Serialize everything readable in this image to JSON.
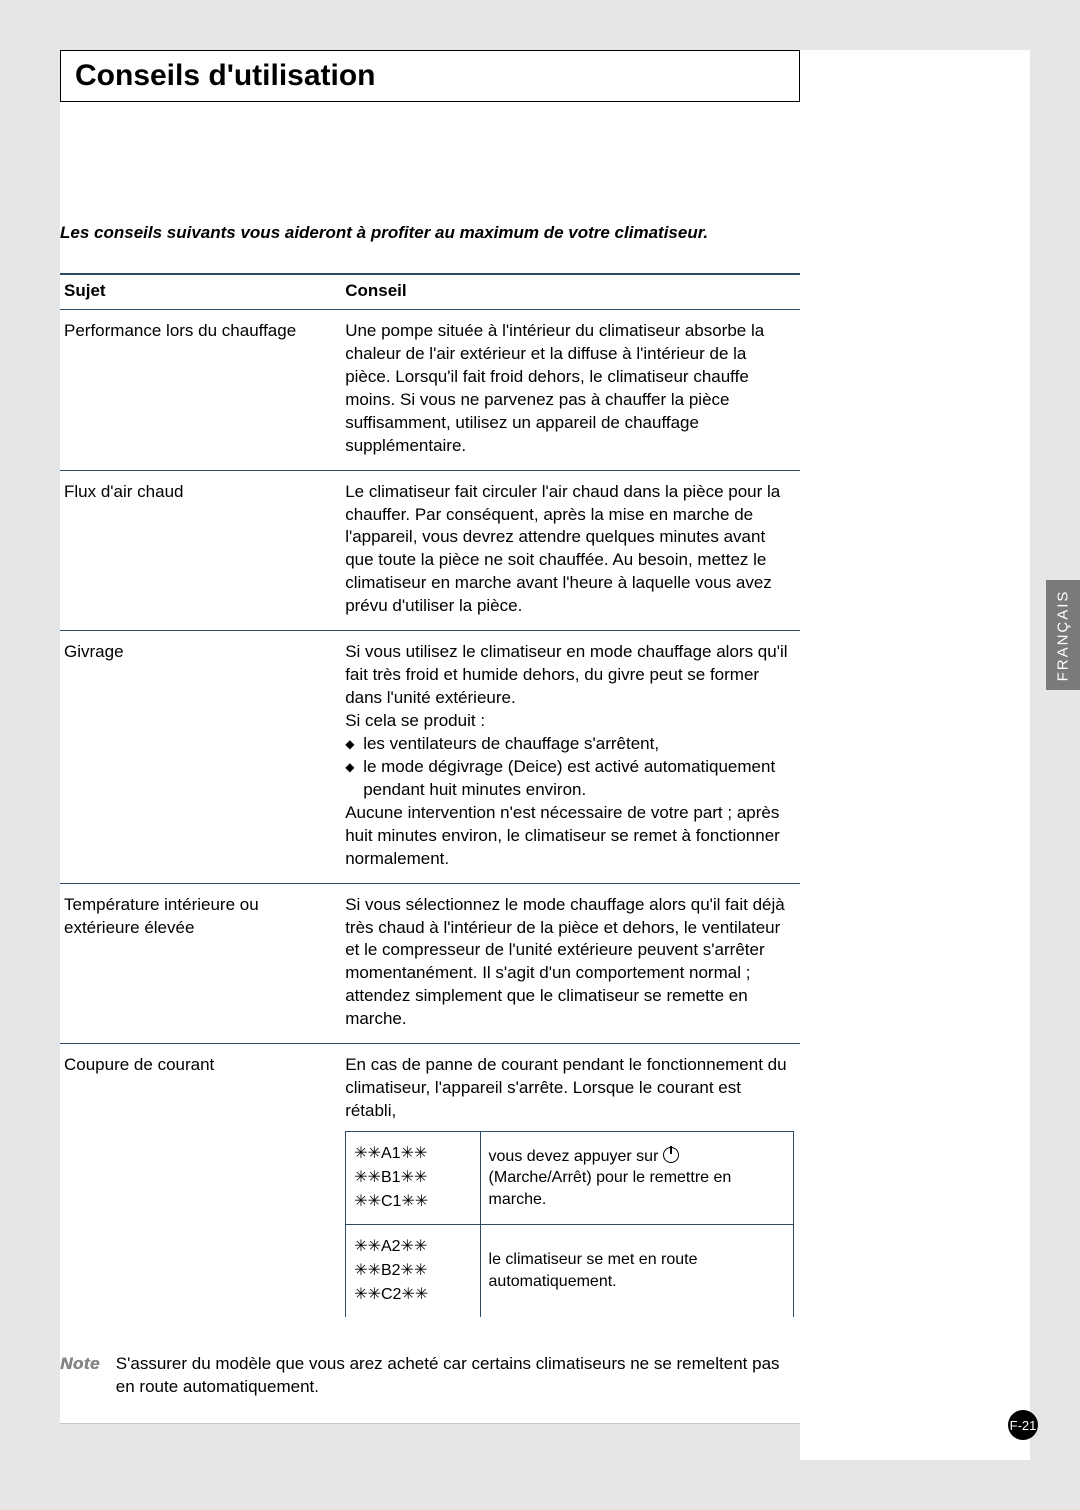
{
  "title": "Conseils d'utilisation",
  "intro": "Les conseils suivants vous aideront à profiter au maximum de votre climatiseur.",
  "headers": {
    "subject": "Sujet",
    "advice": "Conseil"
  },
  "rows": [
    {
      "subject": "Performance lors du chauffage",
      "advice": "Une pompe située à l'intérieur du climatiseur absorbe la chaleur de l'air extérieur et la diffuse à l'intérieur de la pièce. Lorsqu'il fait froid dehors, le climatiseur chauffe moins. Si vous ne parvenez pas à chauffer la pièce suffisamment, utilisez un appareil de chauffage supplémentaire."
    },
    {
      "subject": "Flux d'air chaud",
      "advice": "Le climatiseur fait circuler l'air chaud dans la pièce pour la chauffer. Par conséquent, après la mise en marche de l'appareil, vous devrez attendre quelques minutes avant que toute la pièce ne soit chauffée. Au besoin, mettez le climatiseur en marche avant l'heure à laquelle vous avez prévu d'utiliser la pièce."
    },
    {
      "subject": "Givrage",
      "advice_pre": "Si vous utilisez le climatiseur en mode chauffage alors qu'il fait très froid et humide dehors, du givre peut se former dans l'unité extérieure.\nSi cela se produit :",
      "bullets": [
        "les ventilateurs de chauffage s'arrêtent,",
        "le mode dégivrage (Deice) est activé automatiquement pendant huit minutes environ."
      ],
      "advice_post": "Aucune intervention n'est nécessaire de votre part ; après huit minutes environ, le climatiseur se remet à fonctionner normalement."
    },
    {
      "subject": "Température intérieure ou extérieure élevée",
      "advice": "Si vous sélectionnez le mode chauffage alors qu'il fait déjà très chaud à l'intérieur de la pièce et dehors, le ventilateur et le compresseur de l'unité extérieure peuvent s'arrêter momentanément. Il s'agit d'un comportement normal ; attendez simplement que le climatiseur se remette en marche."
    },
    {
      "subject": "Coupure de courant",
      "advice": "En cas de panne de courant pendant le fonctionnement du climatiseur, l'appareil s'arrête. Lorsque le courant est rétabli,",
      "inner": [
        {
          "codes": "✳✳A1✳✳\n✳✳B1✳✳\n✳✳C1✳✳",
          "text_pre": "vous devez appuyer sur ",
          "text_post": " (Marche/Arrêt) pour le remettre en marche.",
          "has_icon": true
        },
        {
          "codes": "✳✳A2✳✳\n✳✳B2✳✳\n✳✳C2✳✳",
          "text_pre": "le climatiseur se met en route automatiquement.",
          "text_post": "",
          "has_icon": false
        }
      ]
    }
  ],
  "note_label": "Note",
  "note_text": "S'assurer du modèle que vous arez acheté car certains climatiseurs ne se remeltent pas en route automatiquement.",
  "side_tab": "FRANÇAIS",
  "page_number": "F-21",
  "colors": {
    "page_bg": "#e6e6e6",
    "rule": "#2b4b66",
    "tab_bg": "#7a7a7a",
    "badge_bg": "#000000"
  }
}
